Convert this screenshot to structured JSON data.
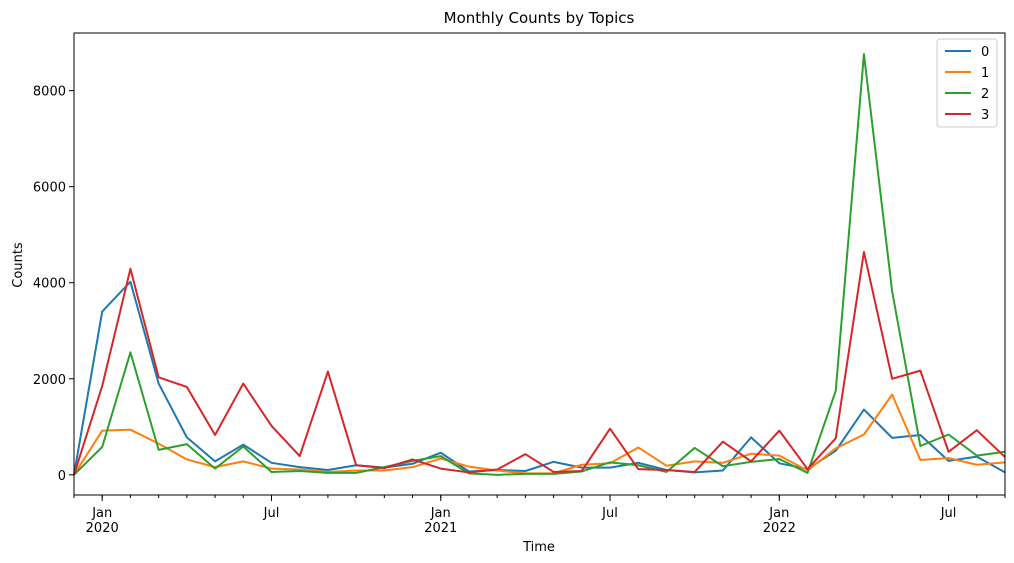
{
  "chart_data": {
    "type": "line",
    "title": "Monthly Counts by Topics",
    "xlabel": "Time",
    "ylabel": "Counts",
    "x": [
      "2019-12",
      "2020-01",
      "2020-02",
      "2020-03",
      "2020-04",
      "2020-05",
      "2020-06",
      "2020-07",
      "2020-08",
      "2020-09",
      "2020-10",
      "2020-11",
      "2020-12",
      "2021-01",
      "2021-02",
      "2021-03",
      "2021-04",
      "2021-05",
      "2021-06",
      "2021-07",
      "2021-08",
      "2021-09",
      "2021-10",
      "2021-11",
      "2021-12",
      "2022-01",
      "2022-02",
      "2022-03",
      "2022-04",
      "2022-05",
      "2022-06",
      "2022-07",
      "2022-08",
      "2022-09"
    ],
    "xlim": [
      "2019-12",
      "2022-09"
    ],
    "ylim": [
      -420,
      9200
    ],
    "x_major_ticks": [
      {
        "date": "2020-01",
        "label": "Jan",
        "sublabel": "2020"
      },
      {
        "date": "2020-07",
        "label": "Jul",
        "sublabel": ""
      },
      {
        "date": "2021-01",
        "label": "Jan",
        "sublabel": "2021"
      },
      {
        "date": "2021-07",
        "label": "Jul",
        "sublabel": ""
      },
      {
        "date": "2022-01",
        "label": "Jan",
        "sublabel": "2022"
      },
      {
        "date": "2022-07",
        "label": "Jul",
        "sublabel": ""
      }
    ],
    "y_ticks": [
      0,
      2000,
      4000,
      6000,
      8000
    ],
    "grid": false,
    "legend_position": "top-right",
    "series": [
      {
        "name": "0",
        "color": "#1f77b4",
        "values": [
          0,
          3400,
          4020,
          1900,
          780,
          280,
          630,
          250,
          160,
          100,
          200,
          150,
          230,
          460,
          70,
          100,
          80,
          270,
          150,
          150,
          250,
          100,
          50,
          90,
          780,
          240,
          120,
          500,
          1360,
          770,
          830,
          290,
          380,
          50
        ]
      },
      {
        "name": "1",
        "color": "#ff7f0e",
        "values": [
          0,
          920,
          940,
          650,
          320,
          160,
          280,
          130,
          110,
          60,
          90,
          90,
          160,
          340,
          170,
          90,
          30,
          30,
          210,
          240,
          570,
          190,
          280,
          250,
          440,
          400,
          90,
          550,
          840,
          1670,
          310,
          350,
          210,
          260
        ]
      },
      {
        "name": "2",
        "color": "#2ca02c",
        "values": [
          0,
          580,
          2550,
          520,
          640,
          130,
          590,
          60,
          80,
          40,
          40,
          160,
          290,
          390,
          30,
          0,
          20,
          20,
          70,
          260,
          200,
          60,
          560,
          180,
          270,
          330,
          40,
          1750,
          8760,
          3820,
          600,
          840,
          400,
          480
        ]
      },
      {
        "name": "3",
        "color": "#d62728",
        "values": [
          0,
          1850,
          4290,
          2030,
          1830,
          830,
          1900,
          1020,
          390,
          2150,
          200,
          140,
          320,
          130,
          50,
          110,
          430,
          60,
          80,
          960,
          120,
          100,
          60,
          690,
          280,
          920,
          120,
          760,
          4640,
          2000,
          2170,
          480,
          930,
          370
        ]
      }
    ]
  }
}
